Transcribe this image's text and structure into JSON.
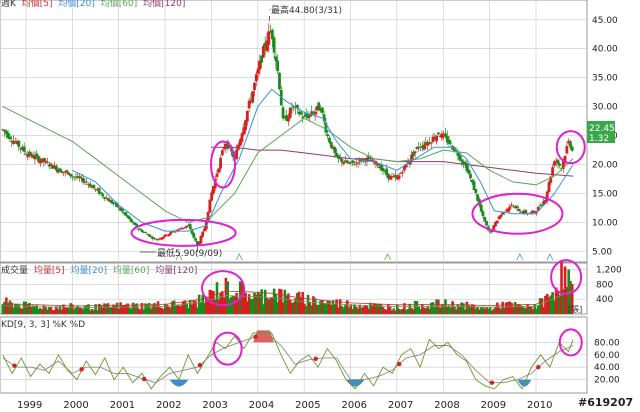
{
  "header": {
    "legend_prefix": "週K",
    "legend_items": [
      "均價[5]",
      "均價[20]",
      "均價[60]",
      "均價[120]"
    ]
  },
  "colors": {
    "up": "#d42020",
    "down": "#1a8a1a",
    "ma5": "#cc3333",
    "ma20": "#3a8fd8",
    "ma60": "#5aa55a",
    "ma120": "#8a3d6e",
    "circle": "#e020d0",
    "grid": "#c8c8c8",
    "price_tag": "#3aa84a",
    "kd_k": "#6a9a2a",
    "kd_d": "#8a8a8a",
    "neg_fill": "#3c8fc8",
    "pos_fill": "#e06060"
  },
  "annotations": {
    "high_label": "最高44.80(3/31)",
    "low_label": "最低5.90(9/09)"
  },
  "price_tags": [
    "22.45",
    "1.32"
  ],
  "volume_panel": {
    "legend_prefix": "成交量",
    "legend_items": [
      "均量[5]",
      "均量[20]",
      "均量[60]",
      "均量[120]"
    ],
    "unit": "[張]",
    "yticks": [
      "1,200",
      "800",
      "400"
    ]
  },
  "kd_panel": {
    "legend": "KD[9, 3, 3] %K %D",
    "yticks": [
      "80.00",
      "60.00",
      "40.00",
      "20.00"
    ]
  },
  "watermark": "#619207",
  "chart_data": {
    "type": "candlestick",
    "x_axis_years": [
      "1999",
      "2000",
      "2001",
      "2002",
      "2003",
      "2004",
      "2005",
      "2006",
      "2007",
      "2008",
      "2009",
      "2010"
    ],
    "price_yticks": [
      45,
      40,
      35,
      30,
      25,
      20,
      15,
      10,
      5
    ],
    "price_ylim": [
      4,
      46
    ],
    "annotation_points": [
      {
        "label": "high",
        "x": 2004.25,
        "y": 44.8
      },
      {
        "label": "low",
        "x": 2002.7,
        "y": 5.9
      }
    ],
    "price_path": [
      [
        1998.5,
        26
      ],
      [
        1999.0,
        22
      ],
      [
        1999.5,
        20
      ],
      [
        2000.0,
        18
      ],
      [
        2000.3,
        17
      ],
      [
        2000.6,
        15
      ],
      [
        2001.0,
        12.5
      ],
      [
        2001.4,
        9
      ],
      [
        2001.8,
        7
      ],
      [
        2002.2,
        8.5
      ],
      [
        2002.5,
        9.5
      ],
      [
        2002.7,
        6
      ],
      [
        2002.85,
        9
      ],
      [
        2003.0,
        15
      ],
      [
        2003.3,
        24
      ],
      [
        2003.5,
        21
      ],
      [
        2003.7,
        27
      ],
      [
        2004.0,
        36
      ],
      [
        2004.2,
        42
      ],
      [
        2004.3,
        43
      ],
      [
        2004.45,
        35
      ],
      [
        2004.55,
        27
      ],
      [
        2004.75,
        30
      ],
      [
        2005.0,
        28
      ],
      [
        2005.2,
        29
      ],
      [
        2005.35,
        30
      ],
      [
        2005.5,
        25
      ],
      [
        2005.7,
        21
      ],
      [
        2006.0,
        20
      ],
      [
        2006.3,
        21
      ],
      [
        2006.6,
        20
      ],
      [
        2006.8,
        18
      ],
      [
        2007.0,
        17.5
      ],
      [
        2007.2,
        20
      ],
      [
        2007.45,
        23
      ],
      [
        2007.7,
        24
      ],
      [
        2007.9,
        25.5
      ],
      [
        2008.1,
        24
      ],
      [
        2008.3,
        22
      ],
      [
        2008.5,
        19.5
      ],
      [
        2008.7,
        15
      ],
      [
        2008.85,
        11
      ],
      [
        2009.0,
        8
      ],
      [
        2009.2,
        11
      ],
      [
        2009.45,
        13
      ],
      [
        2009.65,
        12
      ],
      [
        2009.85,
        11.5
      ],
      [
        2010.0,
        12
      ],
      [
        2010.2,
        14
      ],
      [
        2010.4,
        21
      ],
      [
        2010.55,
        19.5
      ],
      [
        2010.7,
        24
      ],
      [
        2010.8,
        22.5
      ]
    ],
    "ma20_path": [
      [
        2000.0,
        19
      ],
      [
        2000.5,
        17
      ],
      [
        2001.0,
        13
      ],
      [
        2001.5,
        10
      ],
      [
        2002.0,
        8.5
      ],
      [
        2002.5,
        8.5
      ],
      [
        2002.9,
        9.5
      ],
      [
        2003.2,
        15
      ],
      [
        2003.6,
        21
      ],
      [
        2004.0,
        30
      ],
      [
        2004.3,
        33
      ],
      [
        2004.6,
        31
      ],
      [
        2005.0,
        29
      ],
      [
        2005.4,
        28
      ],
      [
        2005.7,
        24
      ],
      [
        2006.0,
        21
      ],
      [
        2006.5,
        20.5
      ],
      [
        2007.0,
        19
      ],
      [
        2007.4,
        21
      ],
      [
        2007.8,
        23
      ],
      [
        2008.2,
        23
      ],
      [
        2008.5,
        21
      ],
      [
        2008.8,
        17
      ],
      [
        2009.1,
        12
      ],
      [
        2009.5,
        11.5
      ],
      [
        2010.0,
        11.5
      ],
      [
        2010.4,
        15
      ],
      [
        2010.8,
        20
      ]
    ],
    "ma60_path": [
      [
        1998.5,
        30
      ],
      [
        1999.0,
        28
      ],
      [
        1999.5,
        26
      ],
      [
        2000.0,
        24
      ],
      [
        2000.5,
        21
      ],
      [
        2001.0,
        18
      ],
      [
        2001.5,
        15
      ],
      [
        2002.0,
        12
      ],
      [
        2002.5,
        10
      ],
      [
        2003.0,
        11
      ],
      [
        2003.5,
        15
      ],
      [
        2004.0,
        22
      ],
      [
        2004.5,
        25
      ],
      [
        2005.0,
        28
      ],
      [
        2005.5,
        26
      ],
      [
        2006.0,
        23
      ],
      [
        2006.5,
        21
      ],
      [
        2007.0,
        20.5
      ],
      [
        2007.5,
        21
      ],
      [
        2008.0,
        22.5
      ],
      [
        2008.5,
        22
      ],
      [
        2009.0,
        19
      ],
      [
        2009.5,
        17
      ],
      [
        2010.0,
        16.5
      ],
      [
        2010.4,
        18
      ],
      [
        2010.8,
        21
      ]
    ],
    "ma120_path": [
      [
        2003.0,
        23
      ],
      [
        2003.5,
        23
      ],
      [
        2004.0,
        22.5
      ],
      [
        2004.5,
        22.5
      ],
      [
        2005.0,
        22
      ],
      [
        2005.5,
        21.5
      ],
      [
        2006.0,
        21
      ],
      [
        2006.5,
        21
      ],
      [
        2007.0,
        20.5
      ],
      [
        2007.5,
        20.5
      ],
      [
        2008.0,
        20.5
      ],
      [
        2008.5,
        20
      ],
      [
        2009.0,
        19.5
      ],
      [
        2009.5,
        19
      ],
      [
        2010.0,
        18.5
      ],
      [
        2010.8,
        18
      ]
    ],
    "volume_ylim": [
      0,
      1300
    ],
    "volume_profile": [
      [
        1998.5,
        350
      ],
      [
        1999.0,
        250
      ],
      [
        1999.5,
        200
      ],
      [
        2000.0,
        220
      ],
      [
        2000.5,
        200
      ],
      [
        2001.0,
        250
      ],
      [
        2001.5,
        250
      ],
      [
        2002.0,
        280
      ],
      [
        2002.5,
        300
      ],
      [
        2002.9,
        450
      ],
      [
        2003.1,
        700
      ],
      [
        2003.4,
        780
      ],
      [
        2003.7,
        650
      ],
      [
        2004.0,
        500
      ],
      [
        2004.3,
        700
      ],
      [
        2004.6,
        500
      ],
      [
        2005.0,
        450
      ],
      [
        2005.5,
        350
      ],
      [
        2006.0,
        300
      ],
      [
        2006.5,
        250
      ],
      [
        2007.0,
        200
      ],
      [
        2007.5,
        280
      ],
      [
        2008.0,
        300
      ],
      [
        2008.5,
        250
      ],
      [
        2009.0,
        150
      ],
      [
        2009.3,
        300
      ],
      [
        2009.8,
        200
      ],
      [
        2010.0,
        250
      ],
      [
        2010.3,
        500
      ],
      [
        2010.55,
        1150
      ],
      [
        2010.7,
        1050
      ],
      [
        2010.8,
        600
      ]
    ],
    "volume_ma_path": [
      [
        1998.5,
        280
      ],
      [
        2000.0,
        220
      ],
      [
        2001.0,
        230
      ],
      [
        2002.0,
        260
      ],
      [
        2002.8,
        400
      ],
      [
        2003.3,
        620
      ],
      [
        2003.8,
        600
      ],
      [
        2004.3,
        560
      ],
      [
        2005.0,
        420
      ],
      [
        2006.0,
        300
      ],
      [
        2007.0,
        250
      ],
      [
        2008.0,
        260
      ],
      [
        2009.0,
        230
      ],
      [
        2010.0,
        260
      ],
      [
        2010.5,
        600
      ],
      [
        2010.8,
        800
      ]
    ],
    "kd_ylim": [
      0,
      100
    ],
    "kd_k_path": [
      [
        1998.5,
        60
      ],
      [
        1998.7,
        30
      ],
      [
        1998.9,
        55
      ],
      [
        1999.1,
        25
      ],
      [
        1999.3,
        45
      ],
      [
        1999.5,
        30
      ],
      [
        1999.7,
        60
      ],
      [
        1999.9,
        35
      ],
      [
        2000.1,
        20
      ],
      [
        2000.3,
        50
      ],
      [
        2000.5,
        28
      ],
      [
        2000.7,
        55
      ],
      [
        2000.9,
        20
      ],
      [
        2001.1,
        40
      ],
      [
        2001.3,
        15
      ],
      [
        2001.5,
        30
      ],
      [
        2001.7,
        5
      ],
      [
        2001.9,
        25
      ],
      [
        2002.1,
        40
      ],
      [
        2002.3,
        20
      ],
      [
        2002.5,
        60
      ],
      [
        2002.7,
        30
      ],
      [
        2002.9,
        55
      ],
      [
        2003.1,
        80
      ],
      [
        2003.3,
        70
      ],
      [
        2003.5,
        90
      ],
      [
        2003.7,
        70
      ],
      [
        2003.9,
        95
      ],
      [
        2004.1,
        97
      ],
      [
        2004.3,
        95
      ],
      [
        2004.5,
        60
      ],
      [
        2004.7,
        30
      ],
      [
        2004.9,
        50
      ],
      [
        2005.1,
        60
      ],
      [
        2005.3,
        40
      ],
      [
        2005.5,
        70
      ],
      [
        2005.7,
        50
      ],
      [
        2005.9,
        20
      ],
      [
        2006.1,
        5
      ],
      [
        2006.3,
        30
      ],
      [
        2006.5,
        10
      ],
      [
        2006.7,
        40
      ],
      [
        2006.9,
        30
      ],
      [
        2007.1,
        60
      ],
      [
        2007.3,
        70
      ],
      [
        2007.5,
        40
      ],
      [
        2007.7,
        85
      ],
      [
        2007.9,
        70
      ],
      [
        2008.1,
        80
      ],
      [
        2008.3,
        60
      ],
      [
        2008.5,
        50
      ],
      [
        2008.7,
        20
      ],
      [
        2008.9,
        10
      ],
      [
        2009.1,
        5
      ],
      [
        2009.3,
        20
      ],
      [
        2009.5,
        25
      ],
      [
        2009.7,
        5
      ],
      [
        2009.9,
        40
      ],
      [
        2010.1,
        60
      ],
      [
        2010.3,
        40
      ],
      [
        2010.5,
        80
      ],
      [
        2010.7,
        65
      ],
      [
        2010.8,
        85
      ]
    ],
    "kd_d_path": [
      [
        1998.5,
        55
      ],
      [
        1998.8,
        40
      ],
      [
        1999.1,
        40
      ],
      [
        1999.4,
        35
      ],
      [
        1999.7,
        50
      ],
      [
        2000.0,
        30
      ],
      [
        2000.3,
        40
      ],
      [
        2000.6,
        40
      ],
      [
        2000.9,
        30
      ],
      [
        2001.2,
        30
      ],
      [
        2001.5,
        22
      ],
      [
        2001.8,
        15
      ],
      [
        2002.1,
        30
      ],
      [
        2002.4,
        35
      ],
      [
        2002.7,
        40
      ],
      [
        2003.0,
        60
      ],
      [
        2003.3,
        72
      ],
      [
        2003.6,
        80
      ],
      [
        2003.9,
        88
      ],
      [
        2004.2,
        95
      ],
      [
        2004.5,
        75
      ],
      [
        2004.8,
        45
      ],
      [
        2005.1,
        52
      ],
      [
        2005.4,
        55
      ],
      [
        2005.7,
        55
      ],
      [
        2006.0,
        20
      ],
      [
        2006.3,
        20
      ],
      [
        2006.6,
        25
      ],
      [
        2006.9,
        35
      ],
      [
        2007.2,
        55
      ],
      [
        2007.5,
        60
      ],
      [
        2007.8,
        75
      ],
      [
        2008.1,
        75
      ],
      [
        2008.4,
        60
      ],
      [
        2008.7,
        35
      ],
      [
        2009.0,
        15
      ],
      [
        2009.3,
        15
      ],
      [
        2009.6,
        20
      ],
      [
        2009.9,
        30
      ],
      [
        2010.2,
        50
      ],
      [
        2010.5,
        65
      ],
      [
        2010.8,
        75
      ]
    ],
    "kd_neg_zones": [
      [
        2002.1,
        2002.5
      ],
      [
        2005.9,
        2006.3
      ],
      [
        2009.6,
        2009.9
      ]
    ],
    "kd_pos_zones": [
      [
        2003.9,
        2004.35
      ]
    ],
    "highlight_circles": [
      {
        "panel": "price",
        "x": 2002.4,
        "y": 8.2
      },
      {
        "panel": "price",
        "x": 2003.25,
        "y": 20
      },
      {
        "panel": "price",
        "x": 2009.6,
        "y": 11.5
      },
      {
        "panel": "price",
        "x": 2010.75,
        "y": 23
      },
      {
        "panel": "volume",
        "x": 2003.25,
        "y": 700
      },
      {
        "panel": "volume",
        "x": 2010.65,
        "y": 1000
      },
      {
        "panel": "kd",
        "x": 2003.35,
        "y": 70
      },
      {
        "panel": "kd",
        "x": 2010.75,
        "y": 80
      }
    ]
  }
}
